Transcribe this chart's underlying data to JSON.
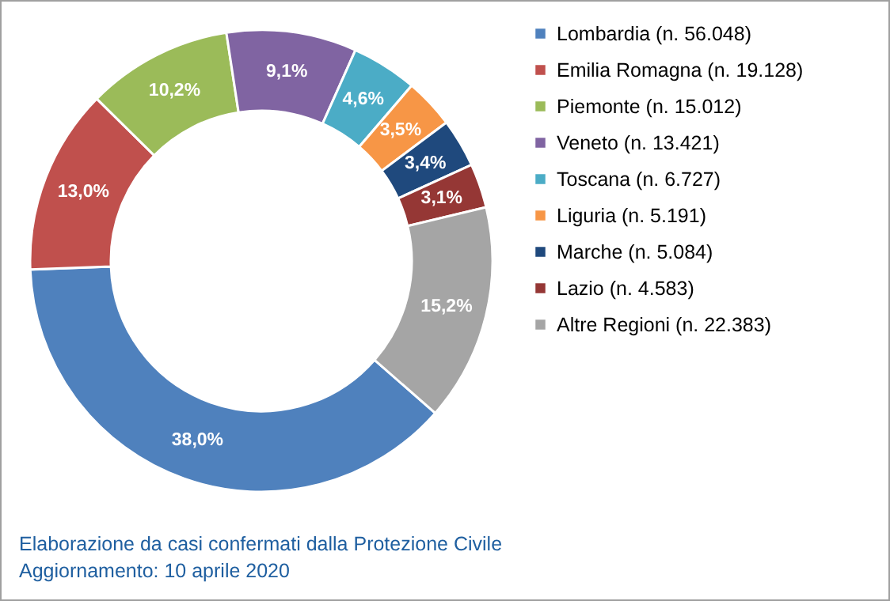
{
  "chart_data": {
    "type": "donut",
    "categories": [
      "Lombardia (n. 56.048)",
      "Emilia Romagna (n. 19.128)",
      "Piemonte (n. 15.012)",
      "Veneto (n. 13.421)",
      "Toscana (n. 6.727)",
      "Liguria (n. 5.191)",
      "Marche (n. 5.084)",
      "Lazio (n. 4.583)",
      "Altre Regioni (n. 22.383)"
    ],
    "values": [
      38.0,
      13.0,
      10.2,
      9.1,
      4.6,
      3.5,
      3.4,
      3.1,
      15.2
    ],
    "value_labels": [
      "38,0%",
      "13,0%",
      "10,2%",
      "9,1%",
      "4,6%",
      "3,5%",
      "3,4%",
      "3,1%",
      "15,2%"
    ],
    "colors": [
      "#4f81bd",
      "#c0504d",
      "#9bbb59",
      "#8064a2",
      "#4bacc6",
      "#f79646",
      "#1f497d",
      "#953735",
      "#a5a5a5"
    ],
    "legend": "right",
    "annotations": [
      "Elaborazione da casi confermati dalla Protezione Civile",
      "Aggiornamento: 10 aprile 2020"
    ]
  }
}
